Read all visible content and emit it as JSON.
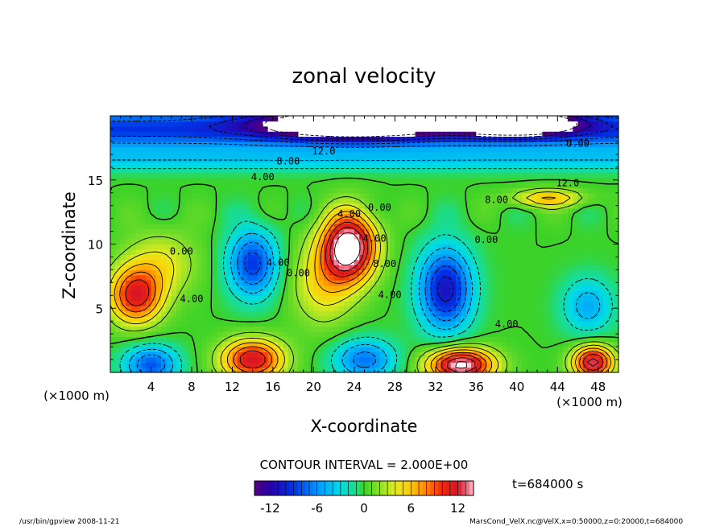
{
  "chart_data": {
    "type": "heatmap",
    "title": "zonal velocity",
    "xlabel": "X-coordinate",
    "ylabel": "Z-coordinate",
    "x_unit": "(×1000 m)",
    "y_unit": "(×1000 m)",
    "xlim": [
      0,
      50
    ],
    "ylim": [
      0,
      20
    ],
    "x_ticks": [
      4,
      8,
      12,
      16,
      20,
      24,
      28,
      32,
      36,
      40,
      44,
      48
    ],
    "y_ticks": [
      5,
      10,
      15
    ],
    "contour_interval_text": "CONTOUR INTERVAL = 2.000E+00",
    "colorbar": {
      "ticks": [
        -12,
        -6,
        0,
        6,
        12
      ],
      "range": [
        -14,
        14
      ]
    },
    "contour_labels": [
      "12.0",
      "8.00",
      "4.00",
      "0.00",
      "12.0",
      "8.00",
      "4.00",
      "0.00",
      "4.00",
      "8.00",
      "4.00",
      "0.00",
      "0.00",
      "4.00",
      "0.00",
      "4.00",
      "4.00"
    ],
    "features": [
      {
        "x": 23.5,
        "z": 9.8,
        "value": 16,
        "sx": 2.6,
        "sz": 2.6
      },
      {
        "x": 21.0,
        "z": 7.0,
        "value": 5,
        "sx": 3.0,
        "sz": 3.2
      },
      {
        "x": 2.5,
        "z": 6.0,
        "value": 11,
        "sx": 2.6,
        "sz": 2.2
      },
      {
        "x": 5.0,
        "z": 8.5,
        "value": 4,
        "sx": 3.5,
        "sz": 2.5
      },
      {
        "x": 14.0,
        "z": 1.0,
        "value": 12,
        "sx": 3.0,
        "sz": 1.6
      },
      {
        "x": 34.5,
        "z": 0.6,
        "value": 15,
        "sx": 3.2,
        "sz": 1.3
      },
      {
        "x": 47.5,
        "z": 0.8,
        "value": 13,
        "sx": 2.0,
        "sz": 1.3
      },
      {
        "x": 43.0,
        "z": 13.6,
        "value": 6,
        "sx": 3.5,
        "sz": 0.7
      },
      {
        "x": 14.0,
        "z": 8.5,
        "value": -9,
        "sx": 2.4,
        "sz": 2.6
      },
      {
        "x": 33.0,
        "z": 6.5,
        "value": -11,
        "sx": 2.6,
        "sz": 3.2
      },
      {
        "x": 47.0,
        "z": 5.2,
        "value": -5,
        "sx": 2.5,
        "sz": 2.2
      },
      {
        "x": 4.0,
        "z": 0.6,
        "value": -8,
        "sx": 2.6,
        "sz": 1.5
      },
      {
        "x": 25.0,
        "z": 1.0,
        "value": -7,
        "sx": 3.0,
        "sz": 1.6
      },
      {
        "x": 24.0,
        "z": 19.5,
        "value": -15,
        "sx": 9.0,
        "sz": 1.2
      },
      {
        "x": 40.0,
        "z": 19.5,
        "value": -15,
        "sx": 6.0,
        "sz": 1.0
      }
    ]
  },
  "annotations": {
    "time_label": "t=684000 s",
    "footer_left": "/usr/bin/gpview   2008-11-21",
    "footer_right": "MarsCond_VelX.nc@VelX,x=0:50000,z=0:20000,t=684000"
  }
}
